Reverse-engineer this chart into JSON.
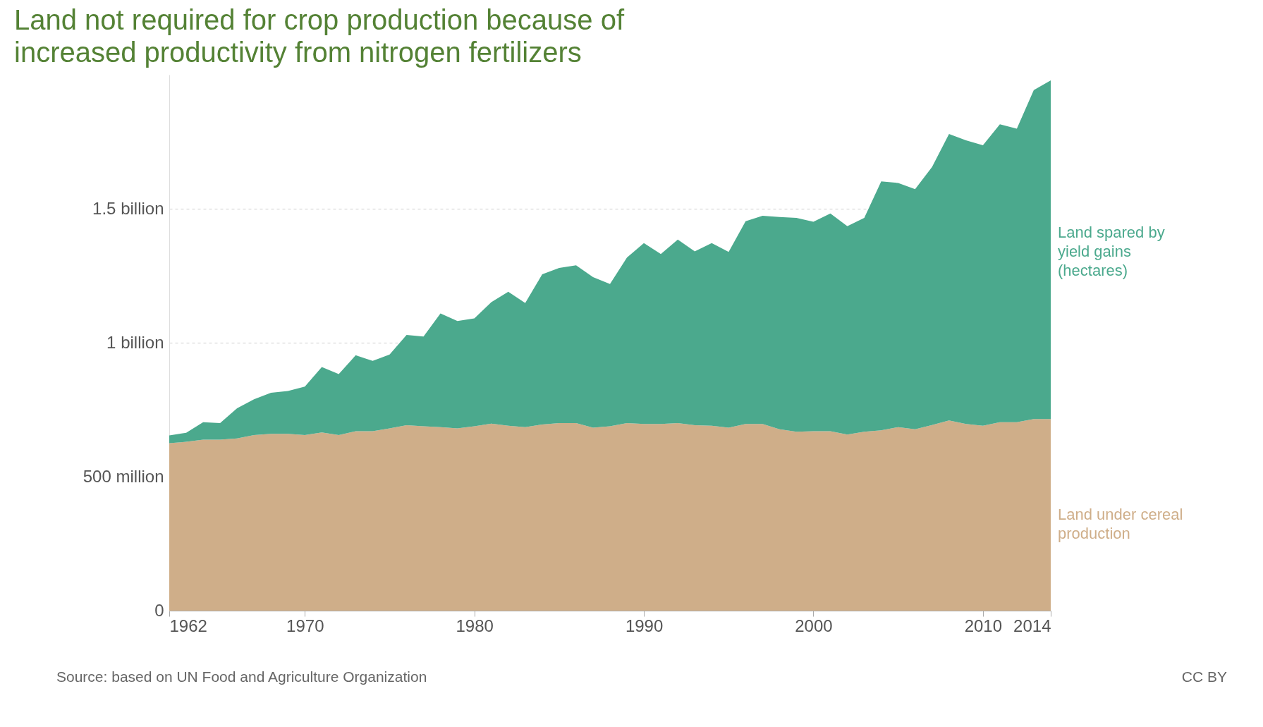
{
  "chart_data": {
    "type": "area",
    "stacked": true,
    "title": "Land not required for crop production because of increased productivity from nitrogen fertilizers",
    "x": [
      1962,
      1963,
      1964,
      1965,
      1966,
      1967,
      1968,
      1969,
      1970,
      1971,
      1972,
      1973,
      1974,
      1975,
      1976,
      1977,
      1978,
      1979,
      1980,
      1981,
      1982,
      1983,
      1984,
      1985,
      1986,
      1987,
      1988,
      1989,
      1990,
      1991,
      1992,
      1993,
      1994,
      1995,
      1996,
      1997,
      1998,
      1999,
      2000,
      2001,
      2002,
      2003,
      2004,
      2005,
      2006,
      2007,
      2008,
      2009,
      2010,
      2011,
      2012,
      2013,
      2014
    ],
    "series": [
      {
        "name": "Land under cereal production",
        "color": "#cfae89",
        "values": [
          625000000,
          630000000,
          638000000,
          638000000,
          643000000,
          655000000,
          660000000,
          660000000,
          655000000,
          665000000,
          655000000,
          670000000,
          670000000,
          680000000,
          692000000,
          688000000,
          685000000,
          680000000,
          688000000,
          698000000,
          690000000,
          685000000,
          695000000,
          700000000,
          700000000,
          683000000,
          688000000,
          700000000,
          697000000,
          697000000,
          700000000,
          692000000,
          690000000,
          683000000,
          697000000,
          697000000,
          677000000,
          668000000,
          670000000,
          670000000,
          657000000,
          668000000,
          673000000,
          685000000,
          677000000,
          693000000,
          710000000,
          697000000,
          690000000,
          703000000,
          703000000,
          715000000,
          715000000
        ]
      },
      {
        "name": "Land spared by yield gains (hectares)",
        "color": "#4ba98d",
        "values": [
          29000000,
          34000000,
          65000000,
          62000000,
          112000000,
          134000000,
          153000000,
          160000000,
          181000000,
          244000000,
          228000000,
          283000000,
          262000000,
          276000000,
          337000000,
          335000000,
          424000000,
          401000000,
          403000000,
          453000000,
          500000000,
          463000000,
          560000000,
          579000000,
          589000000,
          562000000,
          531000000,
          618000000,
          675000000,
          634000000,
          685000000,
          649000000,
          682000000,
          656000000,
          756000000,
          777000000,
          792000000,
          798000000,
          781000000,
          812000000,
          778000000,
          798000000,
          929000000,
          911000000,
          896000000,
          963000000,
          1069000000,
          1058000000,
          1047000000,
          1112000000,
          1096000000,
          1228000000,
          1264000000
        ]
      }
    ],
    "xlim": [
      1962,
      2014
    ],
    "xticks": [
      1962,
      1970,
      1980,
      1990,
      2000,
      2010,
      2014
    ],
    "yticks": [
      {
        "value": 0,
        "label": "0"
      },
      {
        "value": 500000000,
        "label": "500 million"
      },
      {
        "value": 1000000000,
        "label": "1 billion"
      },
      {
        "value": 1500000000,
        "label": "1.5 billion"
      }
    ],
    "ylim": [
      0,
      2000000000
    ],
    "grid": "y",
    "legend": "right",
    "annotations": [
      "Source: based on UN Food and Agriculture Organization",
      "CC BY"
    ]
  }
}
